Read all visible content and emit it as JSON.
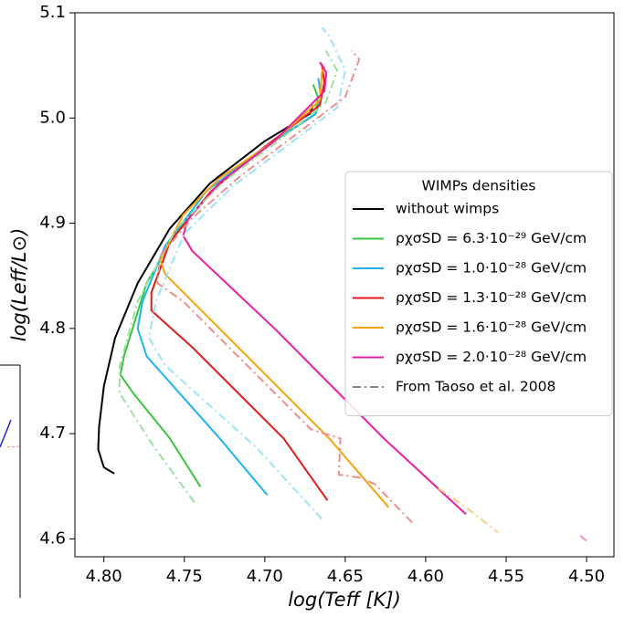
{
  "chart_data": {
    "type": "line",
    "xlabel": "log(Teff [K])",
    "ylabel": "log(Leff/L⊙)",
    "xlim": [
      4.818,
      4.483
    ],
    "ylim": [
      4.583,
      5.1
    ],
    "xticks": [
      {
        "value": 4.8,
        "label": "4.80"
      },
      4.75,
      {
        "value": 4.7,
        "label": "4.70"
      },
      4.65,
      {
        "value": 4.6,
        "label": "4.60"
      },
      4.55,
      {
        "value": 4.5,
        "label": "4.50"
      }
    ],
    "yticks": [
      4.6,
      4.7,
      4.8,
      4.9,
      {
        "value": 5.0,
        "label": "5.0"
      },
      5.1
    ],
    "legend_title": "WIMPs densities",
    "reference_label": "From Taoso et al. 2008",
    "reference_color": "#888888",
    "legend_position": "right",
    "series": [
      {
        "name": "without wimps",
        "color": "#000000",
        "dash": "solid",
        "x": [
          4.7935,
          4.8,
          4.8035,
          4.803,
          4.8,
          4.793,
          4.779,
          4.759,
          4.734,
          4.7,
          4.672,
          4.67
        ],
        "values": [
          4.662,
          4.668,
          4.685,
          4.706,
          4.745,
          4.791,
          4.843,
          4.895,
          4.938,
          4.978,
          5.004,
          5.012
        ]
      },
      {
        "name": "ρχσSD = 6.3·10⁻²⁹ GeV/cm",
        "color": "#3cc43c",
        "dash": "solid",
        "x": [
          4.74,
          4.759,
          4.782,
          4.7898,
          4.7875,
          4.7734,
          4.7535,
          4.728,
          4.694,
          4.6685,
          4.667,
          4.67
        ],
        "values": [
          4.6495,
          4.6955,
          4.739,
          4.756,
          4.7736,
          4.843,
          4.895,
          4.9385,
          4.978,
          5.0036,
          5.02,
          5.032
        ]
      },
      {
        "name": "ρχσSD = 1.0·10⁻²⁸ GeV/cm",
        "color": "#1eb4f0",
        "dash": "solid",
        "x": [
          4.6985,
          4.728,
          4.7734,
          4.779,
          4.776,
          4.762,
          4.7365,
          4.6997,
          4.6685,
          4.665,
          4.6668
        ],
        "values": [
          4.6417,
          4.6955,
          4.7736,
          4.8,
          4.8257,
          4.878,
          4.93,
          4.973,
          5.004,
          5.02,
          5.038
        ]
      },
      {
        "name": "ρχσSD = 1.3·10⁻²⁸ GeV/cm",
        "color": "#e01c1c",
        "dash": "solid",
        "x": [
          4.661,
          4.6883,
          4.745,
          4.7705,
          4.7705,
          4.759,
          4.7337,
          4.6997,
          4.6657,
          4.663,
          4.6645
        ],
        "values": [
          4.6365,
          4.6955,
          4.782,
          4.817,
          4.834,
          4.882,
          4.93,
          4.973,
          5.0123,
          5.034,
          5.0514
        ]
      },
      {
        "name": "ρχσSD = 1.6·10⁻²⁸ GeV/cm",
        "color": "#f5a30f",
        "dash": "solid",
        "x": [
          4.6231,
          4.66,
          4.7223,
          4.762,
          4.7649,
          4.7507,
          4.728,
          4.694,
          4.6657,
          4.6645,
          4.663
        ],
        "values": [
          4.63,
          4.6955,
          4.791,
          4.8517,
          4.865,
          4.908,
          4.943,
          4.978,
          5.017,
          5.043,
          5.049
        ]
      },
      {
        "name": "ρχσSD = 2.0·10⁻²⁸ GeV/cm",
        "color": "#e81ea0",
        "dash": "solid",
        "x": [
          4.575,
          4.626,
          4.694,
          4.745,
          4.7507,
          4.7478,
          4.728,
          4.694,
          4.663,
          4.6617,
          4.6657
        ],
        "values": [
          4.6234,
          4.6955,
          4.8,
          4.8734,
          4.888,
          4.9038,
          4.9385,
          4.978,
          5.0253,
          5.043,
          5.053
        ]
      },
      {
        "color": "#9ee09e",
        "dash": "dashdot",
        "x": [
          4.7438,
          4.77,
          4.7904,
          4.79,
          4.779,
          4.755,
          4.725,
          4.69,
          4.662,
          4.655,
          4.662
        ],
        "values": [
          4.6347,
          4.69,
          4.739,
          4.765,
          4.8257,
          4.895,
          4.94,
          4.98,
          5.015,
          5.045,
          5.064
        ]
      },
      {
        "color": "#9ee2f5",
        "dash": "dashdot",
        "x": [
          4.6645,
          4.7053,
          4.762,
          4.772,
          4.7677,
          4.75,
          4.72,
          4.685,
          4.655,
          4.65,
          4.66,
          4.6645
        ],
        "values": [
          4.619,
          4.6868,
          4.765,
          4.791,
          4.8257,
          4.89,
          4.935,
          4.975,
          5.01,
          5.045,
          5.078,
          5.086
        ]
      },
      {
        "color": "#f08c8c",
        "dash": "dashdot",
        "x": [
          4.6084,
          4.6316,
          4.64,
          4.654,
          4.653,
          4.6713,
          4.7507,
          4.7666,
          4.765,
          4.745,
          4.715,
          4.68,
          4.65,
          4.6413,
          4.646
        ],
        "values": [
          4.6156,
          4.652,
          4.658,
          4.661,
          4.6955,
          4.704,
          4.8257,
          4.843,
          4.869,
          4.905,
          4.945,
          4.985,
          5.02,
          5.0557,
          5.064
        ]
      },
      {
        "color": "#f8cf8a",
        "dash": "dashdot",
        "x": [
          4.592,
          4.575,
          4.555
        ],
        "values": [
          4.648,
          4.63,
          4.606
        ]
      },
      {
        "color": "#f590c8",
        "dash": "dashdot",
        "x": [
          4.504,
          4.5
        ],
        "values": [
          4.603,
          4.598
        ]
      }
    ]
  }
}
